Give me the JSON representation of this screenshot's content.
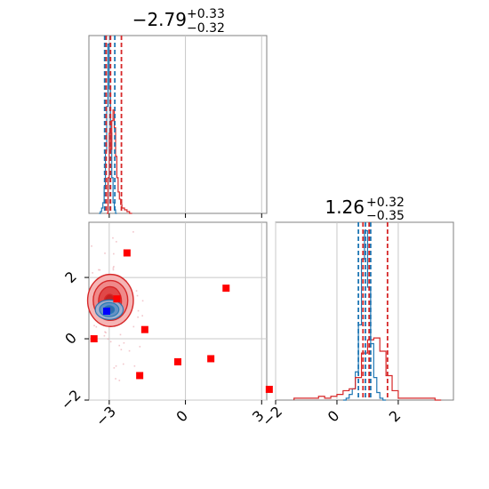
{
  "chart_data": [
    {
      "panel": "hist-param1",
      "type": "histogram",
      "title": {
        "value": "−2.79",
        "plus": "+0.33",
        "minus": "−0.32"
      },
      "xlim": [
        -3.8,
        3.2
      ],
      "ticks": [
        -3,
        0,
        3
      ],
      "grid": true,
      "series": [
        {
          "color": "#1f77b4",
          "bins": [
            [
              -3.4,
              -3.35,
              0
            ],
            [
              -3.35,
              -3.3,
              0.01
            ],
            [
              -3.3,
              -3.25,
              0.03
            ],
            [
              -3.25,
              -3.2,
              0.06
            ],
            [
              -3.2,
              -3.15,
              0.15
            ],
            [
              -3.15,
              -3.1,
              0.35
            ],
            [
              -3.1,
              -3.05,
              0.6
            ],
            [
              -3.05,
              -3.0,
              0.95
            ],
            [
              -3.0,
              -2.95,
              0.7
            ],
            [
              -2.95,
              -2.9,
              0.45
            ],
            [
              -2.9,
              -2.85,
              0.2
            ],
            [
              -2.85,
              -2.8,
              0.06
            ],
            [
              -2.8,
              -2.75,
              0.02
            ],
            [
              -2.75,
              -2.7,
              0
            ]
          ],
          "quantiles": [
            -3.18,
            -2.97,
            -2.78
          ]
        },
        {
          "color": "#d62728",
          "bins": [
            [
              -3.1,
              -3.05,
              0
            ],
            [
              -3.05,
              -3.0,
              0.2
            ],
            [
              -3.0,
              -2.95,
              0.45
            ],
            [
              -2.95,
              -2.9,
              0.36
            ],
            [
              -2.9,
              -2.85,
              0.52
            ],
            [
              -2.85,
              -2.8,
              0.58
            ],
            [
              -2.8,
              -2.75,
              0.48
            ],
            [
              -2.75,
              -2.7,
              0.32
            ],
            [
              -2.7,
              -2.65,
              0.2
            ],
            [
              -2.65,
              -2.6,
              0.12
            ],
            [
              -2.6,
              -2.55,
              0.08
            ],
            [
              -2.55,
              -2.5,
              0.05
            ],
            [
              -2.5,
              -2.4,
              0.03
            ],
            [
              -2.4,
              -2.3,
              0.02
            ],
            [
              -2.3,
              -2.2,
              0.01
            ],
            [
              -2.2,
              -2.1,
              0
            ]
          ],
          "quantiles": [
            -3.12,
            -2.95,
            -2.52
          ]
        }
      ]
    },
    {
      "panel": "scatter-joint",
      "type": "scatter",
      "xlim": [
        -3.8,
        3.2
      ],
      "ylim": [
        -2,
        3.8
      ],
      "xticks": [
        -3,
        0,
        3
      ],
      "yticks": [
        -2,
        0,
        2
      ],
      "grid": true,
      "red_points": [
        [
          -2.3,
          2.8
        ],
        [
          -2.7,
          1.3
        ],
        [
          1.6,
          1.65
        ],
        [
          -1.6,
          0.3
        ],
        [
          -3.6,
          0
        ],
        [
          -1.8,
          -1.2
        ],
        [
          -0.3,
          -0.75
        ],
        [
          1.0,
          -0.65
        ],
        [
          3.3,
          -1.65
        ]
      ],
      "blue_point": [
        -3.1,
        0.9
      ],
      "red_contours": [
        {
          "cx": -2.95,
          "cy": 1.25,
          "rx": 0.9,
          "ry": 0.85,
          "fill": "#f5b5b5"
        },
        {
          "cx": -2.95,
          "cy": 1.25,
          "rx": 0.68,
          "ry": 0.65,
          "fill": "#ef8a8a"
        },
        {
          "cx": -2.97,
          "cy": 1.22,
          "rx": 0.45,
          "ry": 0.48,
          "fill": "#e04848"
        },
        {
          "cx": -2.98,
          "cy": 1.2,
          "rx": 0.22,
          "ry": 0.25,
          "fill": "#c42020"
        }
      ],
      "blue_contours": [
        {
          "cx": -3.0,
          "cy": 0.95,
          "rx": 0.55,
          "ry": 0.32,
          "fill": "#9ab7d8"
        },
        {
          "cx": -3.0,
          "cy": 0.95,
          "rx": 0.38,
          "ry": 0.23,
          "fill": "#5f8fc4"
        },
        {
          "cx": -3.0,
          "cy": 0.95,
          "rx": 0.2,
          "ry": 0.13,
          "fill": "#2d66a8"
        }
      ]
    },
    {
      "panel": "hist-param2",
      "type": "histogram",
      "title": {
        "value": "1.26",
        "plus": "+0.32",
        "minus": "−0.35"
      },
      "xlim": [
        -2,
        3.8
      ],
      "ticks": [
        -2,
        0,
        2
      ],
      "grid": true,
      "series": [
        {
          "color": "#1f77b4",
          "bins": [
            [
              0.2,
              0.3,
              0
            ],
            [
              0.3,
              0.4,
              0.01
            ],
            [
              0.4,
              0.5,
              0.03
            ],
            [
              0.5,
              0.6,
              0.06
            ],
            [
              0.6,
              0.7,
              0.15
            ],
            [
              0.7,
              0.8,
              0.4
            ],
            [
              0.8,
              0.9,
              0.75
            ],
            [
              0.9,
              1.0,
              0.9
            ],
            [
              1.0,
              1.1,
              0.6
            ],
            [
              1.1,
              1.2,
              0.3
            ],
            [
              1.2,
              1.3,
              0.12
            ],
            [
              1.3,
              1.4,
              0.04
            ],
            [
              1.4,
              1.5,
              0.01
            ],
            [
              1.5,
              1.6,
              0
            ]
          ],
          "quantiles": [
            0.7,
            0.93,
            1.1
          ]
        },
        {
          "color": "#d62728",
          "bins": [
            [
              -1.4,
              -1.2,
              0.01
            ],
            [
              -1.2,
              -0.6,
              0.01
            ],
            [
              -0.6,
              -0.4,
              0.02
            ],
            [
              -0.4,
              -0.2,
              0.01
            ],
            [
              -0.2,
              0.0,
              0.02
            ],
            [
              0.0,
              0.2,
              0.03
            ],
            [
              0.2,
              0.4,
              0.05
            ],
            [
              0.4,
              0.6,
              0.06
            ],
            [
              0.6,
              0.8,
              0.12
            ],
            [
              0.8,
              1.0,
              0.25
            ],
            [
              1.0,
              1.2,
              0.32
            ],
            [
              1.2,
              1.4,
              0.33
            ],
            [
              1.4,
              1.6,
              0.26
            ],
            [
              1.6,
              1.8,
              0.13
            ],
            [
              1.8,
              2.0,
              0.05
            ],
            [
              2.0,
              2.2,
              0.01
            ],
            [
              2.2,
              2.6,
              0.01
            ],
            [
              2.6,
              3.2,
              0.01
            ],
            [
              3.2,
              3.4,
              0
            ]
          ],
          "quantiles": [
            0.85,
            1.05,
            1.65
          ]
        }
      ]
    }
  ]
}
